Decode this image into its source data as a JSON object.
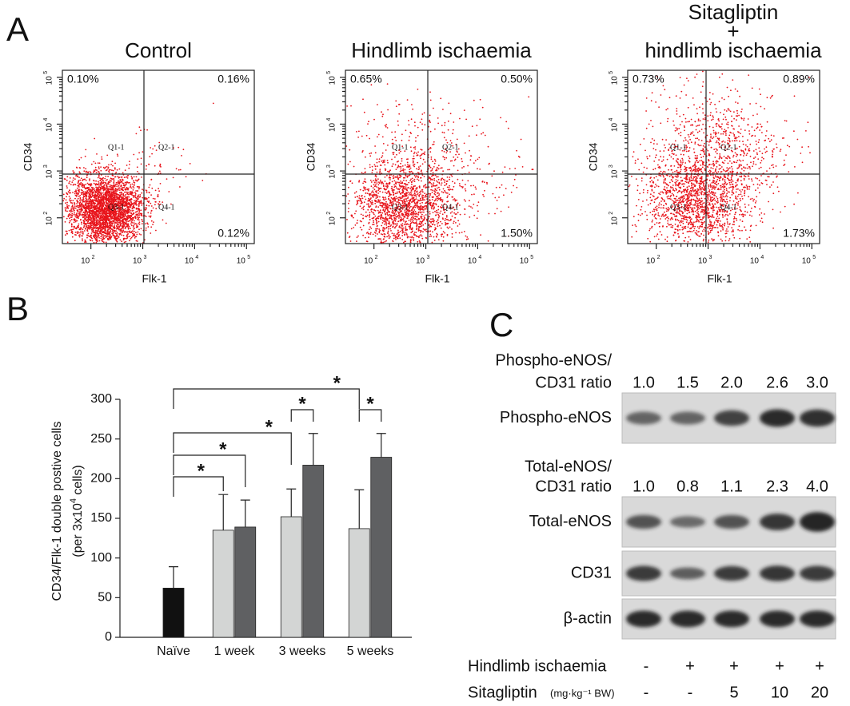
{
  "panel_a": {
    "label": "A",
    "axis_tick_base": "10",
    "x_exponents": [
      "2",
      "3",
      "4",
      "5"
    ],
    "y_exponents": [
      "2",
      "3",
      "4",
      "5"
    ],
    "x_label": "Flk-1",
    "y_label": "CD34",
    "gate_labels": [
      "Q1-1",
      "Q2-1",
      "Q3-1",
      "Q4-1"
    ],
    "plots": [
      {
        "title_lines": [
          "Control"
        ],
        "quadrants": [
          "0.10%",
          "0.16%",
          "0.12%"
        ]
      },
      {
        "title_lines": [
          "Hindlimb ischaemia"
        ],
        "quadrants": [
          "0.65%",
          "0.50%",
          "1.50%"
        ]
      },
      {
        "title_lines": [
          "Sitagliptin",
          "+",
          "hindlimb ischaemia"
        ],
        "quadrants": [
          "0.73%",
          "0.89%",
          "1.73%"
        ]
      }
    ]
  },
  "chart_data": {
    "type": "bar",
    "panel_label": "B",
    "y_label_lines": [
      "CD34/Flk-1 double postive cells",
      "(per 3x10",
      "4",
      " cells)"
    ],
    "categories": [
      "Naïve",
      "1 week",
      "3 weeks",
      "5 weeks"
    ],
    "series": [
      {
        "color": "#111111",
        "values": [
          62,
          null,
          null,
          null
        ],
        "errors": [
          27,
          null,
          null,
          null
        ]
      },
      {
        "color": "#d3d5d4",
        "values": [
          null,
          135,
          152,
          137
        ],
        "errors": [
          null,
          45,
          35,
          49
        ]
      },
      {
        "color": "#5f6062",
        "values": [
          null,
          139,
          217,
          227
        ],
        "errors": [
          null,
          34,
          40,
          30
        ]
      }
    ],
    "ylim": [
      0,
      300
    ],
    "yticks": [
      0,
      50,
      100,
      150,
      200,
      250,
      300
    ],
    "significance_marks": [
      "*",
      "*",
      "*",
      "*",
      "*",
      "*"
    ]
  },
  "panel_c": {
    "label": "C",
    "ratio_groups": [
      {
        "title_lines": [
          "Phospho-eNOS/",
          "CD31 ratio"
        ],
        "ratios": [
          "1.0",
          "1.5",
          "2.0",
          "2.6",
          "3.0"
        ]
      },
      {
        "title_lines": [
          "Total-eNOS/",
          "CD31 ratio"
        ],
        "ratios": [
          "1.0",
          "0.8",
          "1.1",
          "2.3",
          "4.0"
        ]
      }
    ],
    "blots": [
      "Phospho-eNOS",
      "Total-eNOS",
      "CD31",
      "β-actin"
    ],
    "conditions": [
      {
        "label": "Hindlimb ischaemia",
        "values": [
          "-",
          "+",
          "+",
          "+",
          "+"
        ]
      },
      {
        "label": "Sitagliptin",
        "unit": "(mg·kg⁻¹ BW)",
        "values": [
          "-",
          "-",
          "5",
          "10",
          "20"
        ]
      }
    ]
  }
}
